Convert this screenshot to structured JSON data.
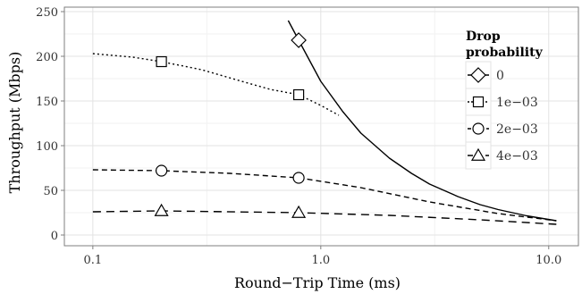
{
  "chart_data": {
    "type": "line",
    "xlabel": "Round−Trip Time (ms)",
    "ylabel": "Throughput (Mbps)",
    "x_scale": "log",
    "xlim": [
      0.075,
      13.5
    ],
    "ylim": [
      -12,
      255
    ],
    "x_ticks": [
      {
        "value": 0.1,
        "label": "0.1"
      },
      {
        "value": 1.0,
        "label": "1.0"
      },
      {
        "value": 10.0,
        "label": "10.0"
      }
    ],
    "y_ticks": [
      0,
      50,
      100,
      150,
      200,
      250
    ],
    "grid": true,
    "legend": {
      "title_lines": [
        "Drop",
        "probability"
      ],
      "placement": "right"
    },
    "series": [
      {
        "name": "0",
        "style": "solid",
        "marker": "diamond",
        "markers": [
          [
            0.8,
            218
          ]
        ],
        "x": [
          0.72,
          0.8,
          1.0,
          1.25,
          1.5,
          2.0,
          2.5,
          3.0,
          4.0,
          5.0,
          6.0,
          8.0,
          10.8
        ],
        "y": [
          240,
          218,
          172,
          138,
          114,
          86,
          69,
          57,
          43,
          34,
          28.5,
          21.5,
          16
        ]
      },
      {
        "name": "1e−03",
        "style": "dotted",
        "marker": "square",
        "markers": [
          [
            0.2,
            194
          ],
          [
            0.8,
            157
          ]
        ],
        "x": [
          0.1,
          0.15,
          0.2,
          0.3,
          0.45,
          0.6,
          0.8,
          1.0,
          1.2
        ],
        "y": [
          203,
          199,
          194,
          185,
          172,
          163,
          157,
          145,
          134
        ]
      },
      {
        "name": "2e−03",
        "style": "dashed",
        "marker": "circle",
        "markers": [
          [
            0.2,
            72
          ],
          [
            0.8,
            64
          ]
        ],
        "x": [
          0.1,
          0.2,
          0.4,
          0.8,
          1.5,
          3.0,
          6.0,
          10.8
        ],
        "y": [
          73,
          72,
          69,
          64,
          53,
          37,
          24,
          16
        ]
      },
      {
        "name": "4e−03",
        "style": "longdash",
        "marker": "triangle",
        "markers": [
          [
            0.2,
            27
          ],
          [
            0.8,
            25
          ]
        ],
        "x": [
          0.1,
          0.2,
          0.8,
          2.0,
          5.0,
          10.8
        ],
        "y": [
          26,
          27,
          25,
          22,
          17,
          12
        ]
      }
    ]
  }
}
